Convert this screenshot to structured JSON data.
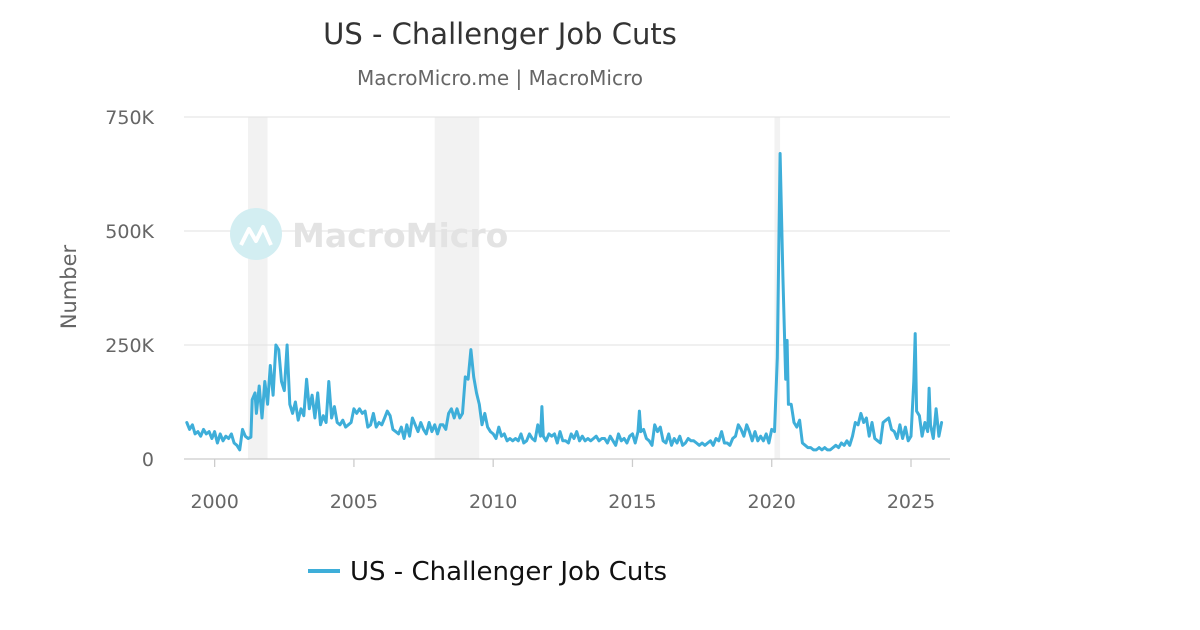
{
  "chart_data": {
    "type": "line",
    "title": "US - Challenger Job Cuts",
    "subtitle": "MacroMicro.me | MacroMicro",
    "ylabel": "Number",
    "xlabel": "",
    "ylim": [
      0,
      750000
    ],
    "xlim": [
      1998.9,
      2026.4
    ],
    "y_ticks": [
      {
        "value": 0,
        "label": "0"
      },
      {
        "value": 250000,
        "label": "250K"
      },
      {
        "value": 500000,
        "label": "500K"
      },
      {
        "value": 750000,
        "label": "750K"
      }
    ],
    "x_ticks": [
      {
        "value": 2000,
        "label": "2000"
      },
      {
        "value": 2005,
        "label": "2005"
      },
      {
        "value": 2010,
        "label": "2010"
      },
      {
        "value": 2015,
        "label": "2015"
      },
      {
        "value": 2020,
        "label": "2020"
      },
      {
        "value": 2025,
        "label": "2025"
      }
    ],
    "recessions": [
      {
        "start": 2001.2,
        "end": 2001.9
      },
      {
        "start": 2007.9,
        "end": 2009.5
      },
      {
        "start": 2020.1,
        "end": 2020.3
      }
    ],
    "grid": true,
    "legend_position": "bottom",
    "series": [
      {
        "name": "US - Challenger Job Cuts",
        "color": "#3eaed9",
        "points": [
          [
            1999.0,
            80000
          ],
          [
            1999.1,
            65000
          ],
          [
            1999.2,
            75000
          ],
          [
            1999.3,
            55000
          ],
          [
            1999.4,
            60000
          ],
          [
            1999.5,
            50000
          ],
          [
            1999.6,
            65000
          ],
          [
            1999.7,
            55000
          ],
          [
            1999.8,
            60000
          ],
          [
            1999.9,
            45000
          ],
          [
            2000.0,
            60000
          ],
          [
            2000.1,
            35000
          ],
          [
            2000.2,
            55000
          ],
          [
            2000.3,
            40000
          ],
          [
            2000.4,
            50000
          ],
          [
            2000.5,
            45000
          ],
          [
            2000.6,
            55000
          ],
          [
            2000.7,
            35000
          ],
          [
            2000.8,
            30000
          ],
          [
            2000.9,
            20000
          ],
          [
            2001.0,
            65000
          ],
          [
            2001.1,
            50000
          ],
          [
            2001.2,
            45000
          ],
          [
            2001.3,
            48000
          ],
          [
            2001.35,
            130000
          ],
          [
            2001.45,
            145000
          ],
          [
            2001.5,
            100000
          ],
          [
            2001.6,
            160000
          ],
          [
            2001.7,
            90000
          ],
          [
            2001.8,
            170000
          ],
          [
            2001.9,
            120000
          ],
          [
            2002.0,
            205000
          ],
          [
            2002.1,
            140000
          ],
          [
            2002.2,
            250000
          ],
          [
            2002.3,
            240000
          ],
          [
            2002.4,
            170000
          ],
          [
            2002.5,
            150000
          ],
          [
            2002.6,
            250000
          ],
          [
            2002.7,
            120000
          ],
          [
            2002.8,
            100000
          ],
          [
            2002.9,
            125000
          ],
          [
            2003.0,
            85000
          ],
          [
            2003.1,
            110000
          ],
          [
            2003.2,
            95000
          ],
          [
            2003.3,
            175000
          ],
          [
            2003.4,
            110000
          ],
          [
            2003.5,
            140000
          ],
          [
            2003.6,
            90000
          ],
          [
            2003.7,
            145000
          ],
          [
            2003.8,
            75000
          ],
          [
            2003.9,
            95000
          ],
          [
            2004.0,
            80000
          ],
          [
            2004.1,
            170000
          ],
          [
            2004.2,
            90000
          ],
          [
            2004.3,
            115000
          ],
          [
            2004.4,
            80000
          ],
          [
            2004.5,
            75000
          ],
          [
            2004.6,
            85000
          ],
          [
            2004.7,
            70000
          ],
          [
            2004.8,
            75000
          ],
          [
            2004.9,
            80000
          ],
          [
            2005.0,
            110000
          ],
          [
            2005.1,
            100000
          ],
          [
            2005.2,
            110000
          ],
          [
            2005.3,
            100000
          ],
          [
            2005.4,
            105000
          ],
          [
            2005.5,
            70000
          ],
          [
            2005.6,
            75000
          ],
          [
            2005.7,
            100000
          ],
          [
            2005.8,
            70000
          ],
          [
            2005.9,
            80000
          ],
          [
            2006.0,
            75000
          ],
          [
            2006.1,
            90000
          ],
          [
            2006.2,
            105000
          ],
          [
            2006.3,
            95000
          ],
          [
            2006.4,
            65000
          ],
          [
            2006.5,
            60000
          ],
          [
            2006.6,
            55000
          ],
          [
            2006.7,
            70000
          ],
          [
            2006.8,
            45000
          ],
          [
            2006.9,
            75000
          ],
          [
            2007.0,
            50000
          ],
          [
            2007.1,
            90000
          ],
          [
            2007.2,
            75000
          ],
          [
            2007.3,
            60000
          ],
          [
            2007.4,
            80000
          ],
          [
            2007.5,
            65000
          ],
          [
            2007.6,
            55000
          ],
          [
            2007.7,
            80000
          ],
          [
            2007.8,
            60000
          ],
          [
            2007.9,
            75000
          ],
          [
            2008.0,
            55000
          ],
          [
            2008.1,
            75000
          ],
          [
            2008.2,
            75000
          ],
          [
            2008.3,
            65000
          ],
          [
            2008.4,
            100000
          ],
          [
            2008.5,
            110000
          ],
          [
            2008.6,
            90000
          ],
          [
            2008.7,
            110000
          ],
          [
            2008.8,
            90000
          ],
          [
            2008.9,
            100000
          ],
          [
            2009.0,
            180000
          ],
          [
            2009.1,
            175000
          ],
          [
            2009.2,
            240000
          ],
          [
            2009.3,
            180000
          ],
          [
            2009.4,
            145000
          ],
          [
            2009.5,
            120000
          ],
          [
            2009.6,
            75000
          ],
          [
            2009.7,
            100000
          ],
          [
            2009.8,
            70000
          ],
          [
            2009.9,
            60000
          ],
          [
            2010.0,
            55000
          ],
          [
            2010.1,
            45000
          ],
          [
            2010.2,
            70000
          ],
          [
            2010.3,
            50000
          ],
          [
            2010.4,
            55000
          ],
          [
            2010.5,
            40000
          ],
          [
            2010.6,
            45000
          ],
          [
            2010.7,
            40000
          ],
          [
            2010.8,
            45000
          ],
          [
            2010.9,
            40000
          ],
          [
            2011.0,
            55000
          ],
          [
            2011.1,
            35000
          ],
          [
            2011.2,
            40000
          ],
          [
            2011.3,
            55000
          ],
          [
            2011.4,
            45000
          ],
          [
            2011.5,
            40000
          ],
          [
            2011.6,
            75000
          ],
          [
            2011.7,
            50000
          ],
          [
            2011.75,
            115000
          ],
          [
            2011.8,
            50000
          ],
          [
            2011.9,
            40000
          ],
          [
            2012.0,
            55000
          ],
          [
            2012.1,
            50000
          ],
          [
            2012.2,
            55000
          ],
          [
            2012.3,
            35000
          ],
          [
            2012.4,
            60000
          ],
          [
            2012.5,
            40000
          ],
          [
            2012.6,
            40000
          ],
          [
            2012.7,
            35000
          ],
          [
            2012.8,
            55000
          ],
          [
            2012.9,
            45000
          ],
          [
            2013.0,
            60000
          ],
          [
            2013.1,
            40000
          ],
          [
            2013.2,
            50000
          ],
          [
            2013.3,
            40000
          ],
          [
            2013.4,
            45000
          ],
          [
            2013.5,
            40000
          ],
          [
            2013.6,
            45000
          ],
          [
            2013.7,
            50000
          ],
          [
            2013.8,
            40000
          ],
          [
            2013.9,
            45000
          ],
          [
            2014.0,
            45000
          ],
          [
            2014.1,
            35000
          ],
          [
            2014.2,
            50000
          ],
          [
            2014.3,
            40000
          ],
          [
            2014.4,
            30000
          ],
          [
            2014.5,
            55000
          ],
          [
            2014.6,
            40000
          ],
          [
            2014.7,
            45000
          ],
          [
            2014.8,
            35000
          ],
          [
            2014.9,
            50000
          ],
          [
            2015.0,
            55000
          ],
          [
            2015.1,
            35000
          ],
          [
            2015.2,
            60000
          ],
          [
            2015.25,
            105000
          ],
          [
            2015.3,
            60000
          ],
          [
            2015.4,
            65000
          ],
          [
            2015.5,
            45000
          ],
          [
            2015.6,
            40000
          ],
          [
            2015.7,
            30000
          ],
          [
            2015.8,
            75000
          ],
          [
            2015.9,
            60000
          ],
          [
            2016.0,
            70000
          ],
          [
            2016.1,
            40000
          ],
          [
            2016.2,
            35000
          ],
          [
            2016.3,
            55000
          ],
          [
            2016.4,
            30000
          ],
          [
            2016.5,
            45000
          ],
          [
            2016.6,
            35000
          ],
          [
            2016.7,
            50000
          ],
          [
            2016.8,
            30000
          ],
          [
            2016.9,
            35000
          ],
          [
            2017.0,
            45000
          ],
          [
            2017.1,
            40000
          ],
          [
            2017.2,
            40000
          ],
          [
            2017.3,
            35000
          ],
          [
            2017.4,
            30000
          ],
          [
            2017.5,
            35000
          ],
          [
            2017.6,
            30000
          ],
          [
            2017.7,
            35000
          ],
          [
            2017.8,
            40000
          ],
          [
            2017.9,
            30000
          ],
          [
            2018.0,
            45000
          ],
          [
            2018.1,
            40000
          ],
          [
            2018.2,
            60000
          ],
          [
            2018.3,
            35000
          ],
          [
            2018.4,
            35000
          ],
          [
            2018.5,
            30000
          ],
          [
            2018.6,
            45000
          ],
          [
            2018.7,
            50000
          ],
          [
            2018.8,
            75000
          ],
          [
            2018.9,
            65000
          ],
          [
            2019.0,
            50000
          ],
          [
            2019.1,
            75000
          ],
          [
            2019.2,
            60000
          ],
          [
            2019.3,
            40000
          ],
          [
            2019.4,
            60000
          ],
          [
            2019.5,
            40000
          ],
          [
            2019.6,
            50000
          ],
          [
            2019.7,
            40000
          ],
          [
            2019.8,
            55000
          ],
          [
            2019.9,
            35000
          ],
          [
            2020.0,
            65000
          ],
          [
            2020.1,
            60000
          ],
          [
            2020.2,
            222000
          ],
          [
            2020.3,
            670000
          ],
          [
            2020.4,
            400000
          ],
          [
            2020.5,
            175000
          ],
          [
            2020.55,
            260000
          ],
          [
            2020.6,
            120000
          ],
          [
            2020.7,
            120000
          ],
          [
            2020.8,
            80000
          ],
          [
            2020.9,
            70000
          ],
          [
            2021.0,
            85000
          ],
          [
            2021.1,
            35000
          ],
          [
            2021.2,
            30000
          ],
          [
            2021.3,
            25000
          ],
          [
            2021.4,
            25000
          ],
          [
            2021.5,
            20000
          ],
          [
            2021.6,
            20000
          ],
          [
            2021.7,
            25000
          ],
          [
            2021.8,
            20000
          ],
          [
            2021.9,
            25000
          ],
          [
            2022.0,
            20000
          ],
          [
            2022.1,
            20000
          ],
          [
            2022.2,
            25000
          ],
          [
            2022.3,
            30000
          ],
          [
            2022.4,
            25000
          ],
          [
            2022.5,
            35000
          ],
          [
            2022.6,
            30000
          ],
          [
            2022.7,
            40000
          ],
          [
            2022.8,
            30000
          ],
          [
            2022.9,
            50000
          ],
          [
            2023.0,
            80000
          ],
          [
            2023.1,
            75000
          ],
          [
            2023.2,
            100000
          ],
          [
            2023.3,
            80000
          ],
          [
            2023.4,
            90000
          ],
          [
            2023.5,
            50000
          ],
          [
            2023.6,
            80000
          ],
          [
            2023.7,
            45000
          ],
          [
            2023.8,
            40000
          ],
          [
            2023.9,
            35000
          ],
          [
            2024.0,
            80000
          ],
          [
            2024.1,
            85000
          ],
          [
            2024.2,
            90000
          ],
          [
            2024.3,
            65000
          ],
          [
            2024.4,
            60000
          ],
          [
            2024.5,
            45000
          ],
          [
            2024.6,
            75000
          ],
          [
            2024.7,
            45000
          ],
          [
            2024.8,
            70000
          ],
          [
            2024.9,
            40000
          ],
          [
            2025.0,
            50000
          ],
          [
            2025.1,
            170000
          ],
          [
            2025.15,
            275000
          ],
          [
            2025.2,
            105000
          ],
          [
            2025.3,
            95000
          ],
          [
            2025.4,
            50000
          ],
          [
            2025.5,
            80000
          ],
          [
            2025.6,
            60000
          ],
          [
            2025.65,
            155000
          ],
          [
            2025.7,
            75000
          ],
          [
            2025.8,
            45000
          ],
          [
            2025.9,
            110000
          ],
          [
            2026.0,
            50000
          ],
          [
            2026.1,
            80000
          ]
        ]
      }
    ]
  },
  "watermark": {
    "text": "MacroMicro",
    "color": "#e3e3e3"
  }
}
